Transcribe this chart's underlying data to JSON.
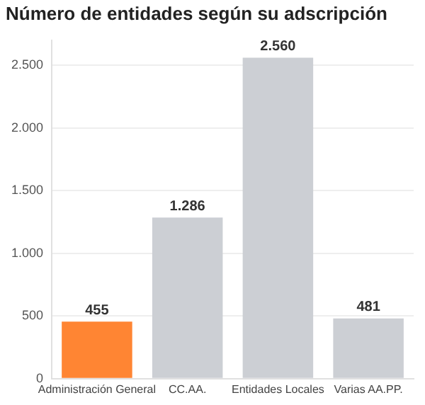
{
  "chart_data": {
    "type": "bar",
    "title": "Número de entidades según su adscripción",
    "categories": [
      "Administración General",
      "CC.AA.",
      "Entidades Locales",
      "Varias AA.PP."
    ],
    "values": [
      455,
      1286,
      2560,
      481
    ],
    "colors": [
      "#ff8533",
      "#cccfd4",
      "#cccfd4",
      "#cccfd4"
    ],
    "value_labels": [
      "455",
      "1.286",
      "2.560",
      "481"
    ],
    "ylim": [
      0,
      2700
    ],
    "yticks": [
      0,
      500,
      {
        "value": 1000,
        "label": "1.000"
      },
      {
        "value": 1500,
        "label": "1.500"
      },
      {
        "value": 2000,
        "label": "2.000"
      },
      {
        "value": 2500,
        "label": "2.500"
      }
    ],
    "grid": "y",
    "legend": false
  }
}
